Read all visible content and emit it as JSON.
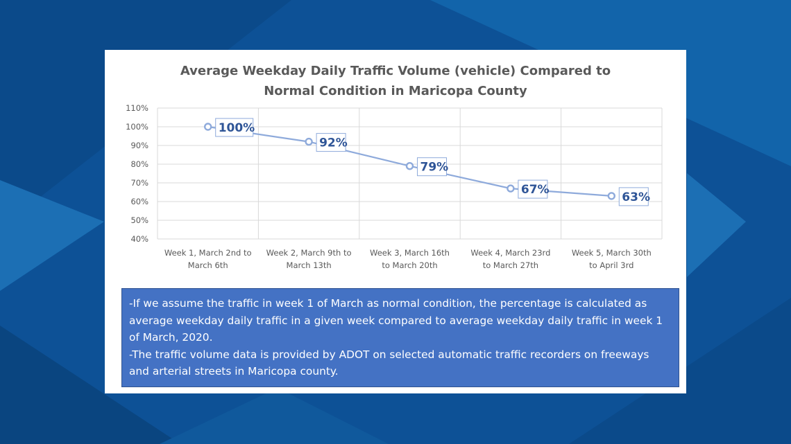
{
  "chart_data": {
    "type": "line",
    "title_lines": [
      "Average Weekday Daily Traffic Volume (vehicle) Compared to",
      "Normal Condition in Maricopa County"
    ],
    "categories": [
      [
        "Week 1, March 2nd to",
        "March 6th"
      ],
      [
        "Week 2, March 9th to",
        "March 13th"
      ],
      [
        "Week 3, March 16th",
        "to March 20th"
      ],
      [
        "Week 4, March 23rd",
        "to March 27th"
      ],
      [
        "Week 5, March 30th",
        "to April 3rd"
      ]
    ],
    "series": [
      {
        "values": [
          100,
          92,
          79,
          67,
          63
        ],
        "color": "#8eaadb"
      }
    ],
    "data_labels": [
      "100%",
      "92%",
      "79%",
      "67%",
      "63%"
    ],
    "y_ticks": [
      "40%",
      "50%",
      "60%",
      "70%",
      "80%",
      "90%",
      "100%",
      "110%"
    ],
    "ylim": [
      40,
      110
    ],
    "ytick_step": 10,
    "grid": true,
    "legend": false
  },
  "notes": [
    "-If we assume the traffic in week 1 of March as normal condition, the percentage  is calculated as average weekday daily traffic in a given week compared to average weekday daily traffic in week 1 of March, 2020.",
    "-The traffic volume data is provided by ADOT on selected automatic traffic recorders on freeways and arterial streets in Maricopa county."
  ],
  "colors": {
    "background": "#0d5196",
    "note_box": "#4472c4",
    "data_label_text": "#2f5597",
    "axis_text": "#595959"
  }
}
